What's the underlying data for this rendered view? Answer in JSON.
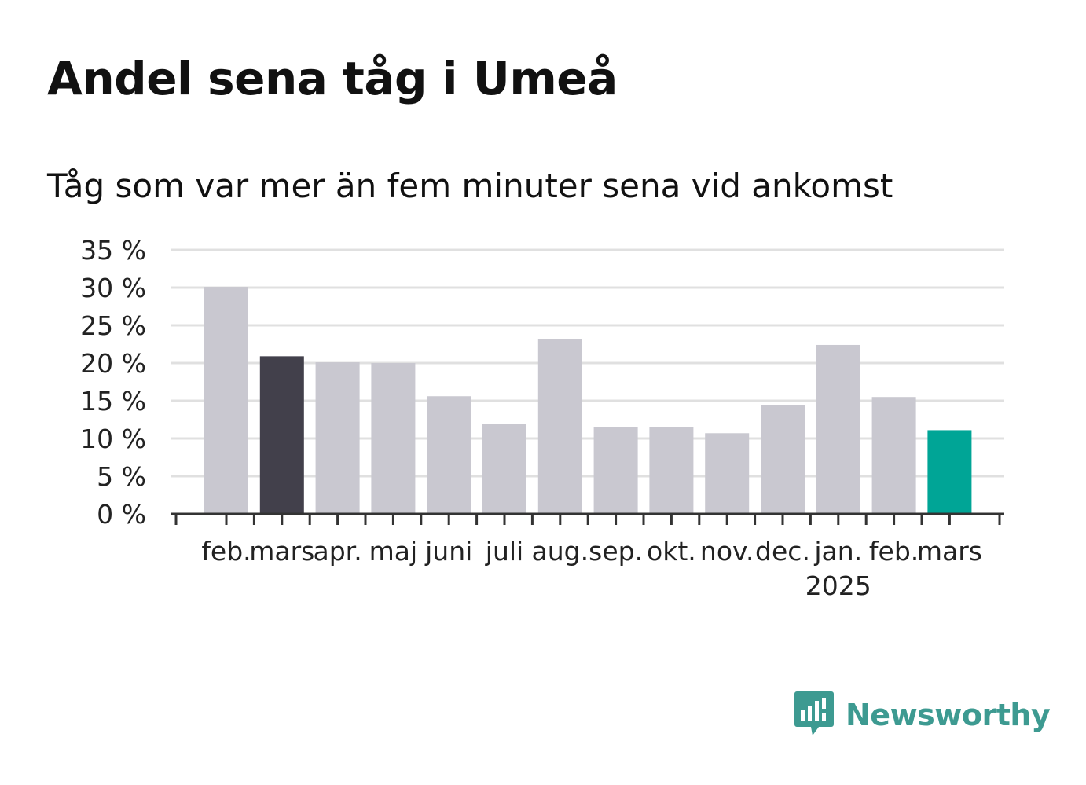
{
  "header": {
    "title": "Andel sena tåg i Umeå",
    "subtitle": "Tåg som var mer än fem minuter sena vid ankomst"
  },
  "brand": {
    "name": "Newsworthy",
    "icon": "bar-chart-speech-bubble-icon",
    "color": "#3d9a91"
  },
  "colors": {
    "default_bar": "#c9c8d0",
    "previous_year_bar": "#42404b",
    "latest_bar": "#00a596",
    "grid": "#e0e0e0",
    "axis": "#333333"
  },
  "chart_data": {
    "type": "bar",
    "categories": [
      "feb.",
      "mars",
      "apr.",
      "maj",
      "juni",
      "juli",
      "aug.",
      "sep.",
      "okt.",
      "nov.",
      "dec.",
      "jan.",
      "feb.",
      "mars"
    ],
    "year_labels": [
      {
        "category_index": 11,
        "label": "2025"
      }
    ],
    "values": [
      30.1,
      20.9,
      20.1,
      20.0,
      15.6,
      11.9,
      23.2,
      11.5,
      11.5,
      10.7,
      14.4,
      22.4,
      15.5,
      11.1
    ],
    "highlight": {
      "1": "previous_year_bar",
      "13": "latest_bar"
    },
    "yticks": [
      "0 %",
      "5 %",
      "10 %",
      "15 %",
      "20 %",
      "25 %",
      "30 %",
      "35 %"
    ],
    "ylim": [
      0,
      35
    ],
    "grid": true,
    "title": "Andel sena tåg i Umeå",
    "subtitle": "Tåg som var mer än fem minuter sena vid ankomst"
  }
}
